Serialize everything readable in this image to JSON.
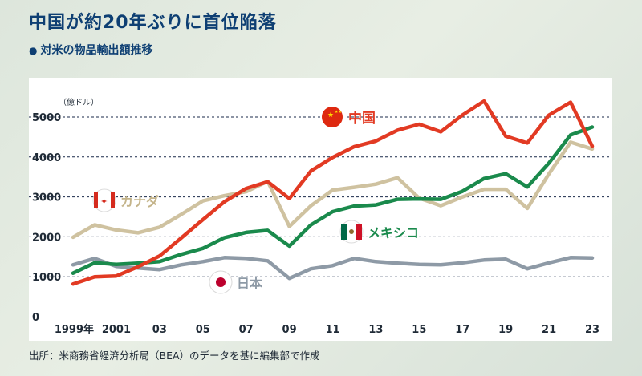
{
  "header": {
    "title": "中国が約20年ぶりに首位陥落",
    "subtitle_bullet": "●",
    "subtitle": "対米の物品輸出額推移"
  },
  "source": "出所：米商務省経済分析局（BEA）のデータを基に編集部で作成",
  "colors": {
    "china": "#e23a23",
    "canada": "#cfc2a0",
    "mexico": "#1a8a4c",
    "japan": "#8e9aa6",
    "title": "#0e3f73",
    "grid": "#1a2a4a"
  },
  "chart_data": {
    "type": "line",
    "unit_label": "（億ドル）",
    "ylim": [
      0,
      5000
    ],
    "yticks": [
      "0",
      "1000",
      "2000",
      "3000",
      "4000",
      "5000"
    ],
    "ytick_values": [
      0,
      1000,
      2000,
      3000,
      4000,
      5000
    ],
    "x": [
      1999,
      2000,
      2001,
      2002,
      2003,
      2004,
      2005,
      2006,
      2007,
      2008,
      2009,
      2010,
      2011,
      2012,
      2013,
      2014,
      2015,
      2016,
      2017,
      2018,
      2019,
      2020,
      2021,
      2022,
      2023
    ],
    "xtick_values": [
      1999,
      2001,
      2003,
      2005,
      2007,
      2009,
      2011,
      2013,
      2015,
      2017,
      2019,
      2021,
      2023
    ],
    "xticks": [
      "1999年",
      "2001",
      "03",
      "05",
      "07",
      "09",
      "11",
      "13",
      "15",
      "17",
      "19",
      "21",
      "23"
    ],
    "series": [
      {
        "name": "中国",
        "color": "#e23a23",
        "values": [
          820,
          1000,
          1020,
          1250,
          1520,
          1970,
          2430,
          2880,
          3210,
          3380,
          2960,
          3650,
          3990,
          4260,
          4400,
          4670,
          4820,
          4630,
          5050,
          5400,
          4520,
          4350,
          5050,
          5370,
          4270
        ]
      },
      {
        "name": "カナダ",
        "color": "#cfc2a0",
        "values": [
          1990,
          2300,
          2170,
          2100,
          2240,
          2560,
          2900,
          3030,
          3130,
          3390,
          2260,
          2780,
          3170,
          3240,
          3320,
          3480,
          2970,
          2780,
          3000,
          3190,
          3190,
          2710,
          3580,
          4370,
          4200
        ]
      },
      {
        "name": "メキシコ",
        "color": "#1a8a4c",
        "values": [
          1090,
          1350,
          1310,
          1340,
          1380,
          1560,
          1710,
          1980,
          2110,
          2160,
          1770,
          2300,
          2630,
          2770,
          2800,
          2940,
          2950,
          2940,
          3140,
          3460,
          3580,
          3250,
          3850,
          4550,
          4750
        ]
      },
      {
        "name": "日本",
        "color": "#8e9aa6",
        "values": [
          1300,
          1460,
          1260,
          1220,
          1180,
          1300,
          1380,
          1480,
          1460,
          1400,
          960,
          1200,
          1280,
          1460,
          1380,
          1340,
          1310,
          1300,
          1350,
          1420,
          1440,
          1200,
          1350,
          1480,
          1470
        ]
      }
    ]
  }
}
